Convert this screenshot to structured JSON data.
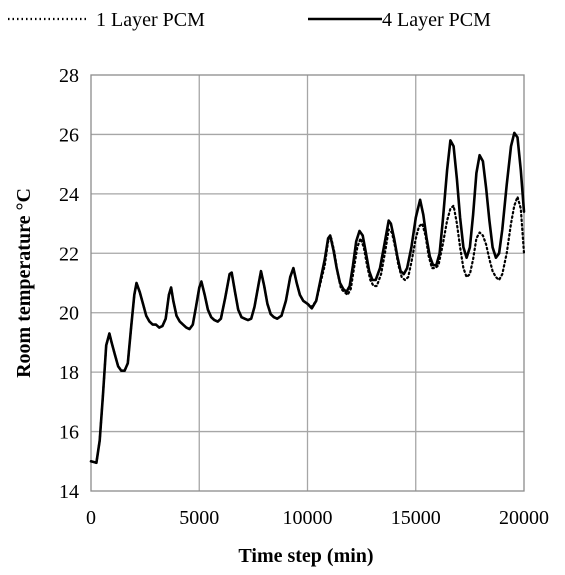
{
  "chart_data": {
    "type": "line",
    "title": "",
    "xlabel": "Time step (min)",
    "ylabel": "Room temperature °C",
    "xlim": [
      0,
      20000
    ],
    "ylim": [
      14,
      28
    ],
    "x_ticks": [
      "0",
      "5000",
      "10000",
      "15000",
      "20000"
    ],
    "y_ticks": [
      "14",
      "16",
      "18",
      "20",
      "22",
      "24",
      "26",
      "28"
    ],
    "grid": true,
    "legend_position": "top",
    "series": [
      {
        "name": "1 Layer PCM",
        "style": "dotted",
        "color": "#000000",
        "points": [
          [
            0,
            15.0
          ],
          [
            250,
            14.95
          ],
          [
            400,
            15.7
          ],
          [
            550,
            17.2
          ],
          [
            700,
            18.9
          ],
          [
            850,
            19.3
          ],
          [
            950,
            19.0
          ],
          [
            1100,
            18.6
          ],
          [
            1250,
            18.2
          ],
          [
            1400,
            18.05
          ],
          [
            1550,
            18.05
          ],
          [
            1700,
            18.3
          ],
          [
            1850,
            19.5
          ],
          [
            2000,
            20.6
          ],
          [
            2100,
            21.0
          ],
          [
            2250,
            20.7
          ],
          [
            2400,
            20.3
          ],
          [
            2550,
            19.9
          ],
          [
            2700,
            19.7
          ],
          [
            2850,
            19.6
          ],
          [
            3000,
            19.6
          ],
          [
            3150,
            19.5
          ],
          [
            3300,
            19.55
          ],
          [
            3450,
            19.8
          ],
          [
            3600,
            20.6
          ],
          [
            3700,
            20.85
          ],
          [
            3800,
            20.4
          ],
          [
            3950,
            19.9
          ],
          [
            4100,
            19.7
          ],
          [
            4250,
            19.6
          ],
          [
            4400,
            19.5
          ],
          [
            4550,
            19.45
          ],
          [
            4700,
            19.6
          ],
          [
            4850,
            20.2
          ],
          [
            5000,
            20.85
          ],
          [
            5100,
            21.05
          ],
          [
            5250,
            20.6
          ],
          [
            5400,
            20.1
          ],
          [
            5550,
            19.85
          ],
          [
            5700,
            19.75
          ],
          [
            5850,
            19.7
          ],
          [
            6000,
            19.8
          ],
          [
            6200,
            20.5
          ],
          [
            6400,
            21.3
          ],
          [
            6500,
            21.35
          ],
          [
            6650,
            20.7
          ],
          [
            6800,
            20.1
          ],
          [
            6950,
            19.85
          ],
          [
            7100,
            19.8
          ],
          [
            7250,
            19.75
          ],
          [
            7400,
            19.8
          ],
          [
            7550,
            20.2
          ],
          [
            7750,
            21.0
          ],
          [
            7850,
            21.4
          ],
          [
            8000,
            20.9
          ],
          [
            8150,
            20.3
          ],
          [
            8300,
            19.95
          ],
          [
            8450,
            19.85
          ],
          [
            8600,
            19.8
          ],
          [
            8800,
            19.9
          ],
          [
            9000,
            20.4
          ],
          [
            9200,
            21.2
          ],
          [
            9350,
            21.5
          ],
          [
            9500,
            21.0
          ],
          [
            9650,
            20.6
          ],
          [
            9800,
            20.4
          ],
          [
            10000,
            20.3
          ],
          [
            10200,
            20.2
          ],
          [
            10400,
            20.4
          ],
          [
            10600,
            21.0
          ],
          [
            10800,
            21.6
          ],
          [
            10950,
            22.4
          ],
          [
            11100,
            22.5
          ],
          [
            11250,
            22.0
          ],
          [
            11400,
            21.3
          ],
          [
            11550,
            20.8
          ],
          [
            11700,
            20.7
          ],
          [
            11850,
            20.6
          ],
          [
            12000,
            20.8
          ],
          [
            12150,
            21.5
          ],
          [
            12300,
            22.2
          ],
          [
            12450,
            22.5
          ],
          [
            12600,
            22.2
          ],
          [
            12750,
            21.6
          ],
          [
            12900,
            21.1
          ],
          [
            13050,
            20.9
          ],
          [
            13200,
            20.9
          ],
          [
            13400,
            21.3
          ],
          [
            13600,
            22.1
          ],
          [
            13750,
            22.8
          ],
          [
            13900,
            22.7
          ],
          [
            14050,
            22.2
          ],
          [
            14200,
            21.6
          ],
          [
            14350,
            21.2
          ],
          [
            14500,
            21.1
          ],
          [
            14650,
            21.2
          ],
          [
            14800,
            21.7
          ],
          [
            15000,
            22.5
          ],
          [
            15150,
            22.9
          ],
          [
            15300,
            23.0
          ],
          [
            15450,
            22.6
          ],
          [
            15600,
            21.9
          ],
          [
            15750,
            21.5
          ],
          [
            15900,
            21.5
          ],
          [
            16050,
            21.6
          ],
          [
            16250,
            22.3
          ],
          [
            16450,
            23.1
          ],
          [
            16600,
            23.5
          ],
          [
            16750,
            23.6
          ],
          [
            16900,
            23.0
          ],
          [
            17050,
            22.2
          ],
          [
            17200,
            21.5
          ],
          [
            17350,
            21.2
          ],
          [
            17500,
            21.3
          ],
          [
            17650,
            21.8
          ],
          [
            17800,
            22.5
          ],
          [
            17950,
            22.7
          ],
          [
            18100,
            22.6
          ],
          [
            18250,
            22.3
          ],
          [
            18400,
            21.8
          ],
          [
            18550,
            21.4
          ],
          [
            18700,
            21.2
          ],
          [
            18850,
            21.1
          ],
          [
            19000,
            21.3
          ],
          [
            19200,
            22.0
          ],
          [
            19400,
            23.0
          ],
          [
            19550,
            23.6
          ],
          [
            19700,
            23.9
          ],
          [
            19850,
            23.5
          ],
          [
            20000,
            22.0
          ]
        ]
      },
      {
        "name": "4 Layer PCM",
        "style": "solid",
        "color": "#000000",
        "points": [
          [
            0,
            15.0
          ],
          [
            250,
            14.95
          ],
          [
            400,
            15.7
          ],
          [
            550,
            17.2
          ],
          [
            700,
            18.9
          ],
          [
            850,
            19.3
          ],
          [
            950,
            19.0
          ],
          [
            1100,
            18.6
          ],
          [
            1250,
            18.2
          ],
          [
            1400,
            18.05
          ],
          [
            1550,
            18.05
          ],
          [
            1700,
            18.3
          ],
          [
            1850,
            19.5
          ],
          [
            2000,
            20.6
          ],
          [
            2100,
            21.0
          ],
          [
            2250,
            20.7
          ],
          [
            2400,
            20.3
          ],
          [
            2550,
            19.9
          ],
          [
            2700,
            19.7
          ],
          [
            2850,
            19.6
          ],
          [
            3000,
            19.6
          ],
          [
            3150,
            19.5
          ],
          [
            3300,
            19.55
          ],
          [
            3450,
            19.8
          ],
          [
            3600,
            20.6
          ],
          [
            3700,
            20.85
          ],
          [
            3800,
            20.4
          ],
          [
            3950,
            19.9
          ],
          [
            4100,
            19.7
          ],
          [
            4250,
            19.6
          ],
          [
            4400,
            19.5
          ],
          [
            4550,
            19.45
          ],
          [
            4700,
            19.6
          ],
          [
            4850,
            20.2
          ],
          [
            5000,
            20.85
          ],
          [
            5100,
            21.05
          ],
          [
            5250,
            20.6
          ],
          [
            5400,
            20.1
          ],
          [
            5550,
            19.85
          ],
          [
            5700,
            19.75
          ],
          [
            5850,
            19.7
          ],
          [
            6000,
            19.8
          ],
          [
            6200,
            20.5
          ],
          [
            6400,
            21.3
          ],
          [
            6500,
            21.35
          ],
          [
            6650,
            20.7
          ],
          [
            6800,
            20.1
          ],
          [
            6950,
            19.85
          ],
          [
            7100,
            19.8
          ],
          [
            7250,
            19.75
          ],
          [
            7400,
            19.8
          ],
          [
            7550,
            20.2
          ],
          [
            7750,
            21.0
          ],
          [
            7850,
            21.4
          ],
          [
            8000,
            20.9
          ],
          [
            8150,
            20.3
          ],
          [
            8300,
            19.95
          ],
          [
            8450,
            19.85
          ],
          [
            8600,
            19.8
          ],
          [
            8800,
            19.9
          ],
          [
            9000,
            20.4
          ],
          [
            9200,
            21.2
          ],
          [
            9350,
            21.5
          ],
          [
            9500,
            21.0
          ],
          [
            9650,
            20.6
          ],
          [
            9800,
            20.4
          ],
          [
            10000,
            20.3
          ],
          [
            10200,
            20.15
          ],
          [
            10400,
            20.4
          ],
          [
            10600,
            21.1
          ],
          [
            10800,
            21.8
          ],
          [
            10950,
            22.5
          ],
          [
            11050,
            22.6
          ],
          [
            11200,
            22.1
          ],
          [
            11350,
            21.5
          ],
          [
            11500,
            21.0
          ],
          [
            11650,
            20.8
          ],
          [
            11800,
            20.7
          ],
          [
            11950,
            20.9
          ],
          [
            12100,
            21.6
          ],
          [
            12250,
            22.4
          ],
          [
            12400,
            22.75
          ],
          [
            12550,
            22.6
          ],
          [
            12700,
            22.0
          ],
          [
            12850,
            21.4
          ],
          [
            13000,
            21.1
          ],
          [
            13150,
            21.1
          ],
          [
            13350,
            21.5
          ],
          [
            13550,
            22.3
          ],
          [
            13750,
            23.1
          ],
          [
            13850,
            23.0
          ],
          [
            14000,
            22.5
          ],
          [
            14150,
            21.9
          ],
          [
            14300,
            21.4
          ],
          [
            14450,
            21.3
          ],
          [
            14600,
            21.5
          ],
          [
            14800,
            22.2
          ],
          [
            15000,
            23.2
          ],
          [
            15200,
            23.8
          ],
          [
            15350,
            23.3
          ],
          [
            15500,
            22.5
          ],
          [
            15650,
            21.9
          ],
          [
            15800,
            21.6
          ],
          [
            15950,
            21.6
          ],
          [
            16100,
            22.0
          ],
          [
            16250,
            23.1
          ],
          [
            16450,
            24.8
          ],
          [
            16600,
            25.8
          ],
          [
            16750,
            25.6
          ],
          [
            16900,
            24.5
          ],
          [
            17050,
            23.2
          ],
          [
            17200,
            22.2
          ],
          [
            17350,
            21.85
          ],
          [
            17500,
            22.2
          ],
          [
            17650,
            23.3
          ],
          [
            17800,
            24.7
          ],
          [
            17950,
            25.3
          ],
          [
            18100,
            25.1
          ],
          [
            18250,
            24.2
          ],
          [
            18400,
            23.1
          ],
          [
            18550,
            22.2
          ],
          [
            18700,
            21.85
          ],
          [
            18850,
            22.0
          ],
          [
            19000,
            22.8
          ],
          [
            19200,
            24.3
          ],
          [
            19400,
            25.6
          ],
          [
            19550,
            26.05
          ],
          [
            19700,
            25.9
          ],
          [
            19850,
            24.8
          ],
          [
            20000,
            23.4
          ]
        ]
      }
    ]
  }
}
